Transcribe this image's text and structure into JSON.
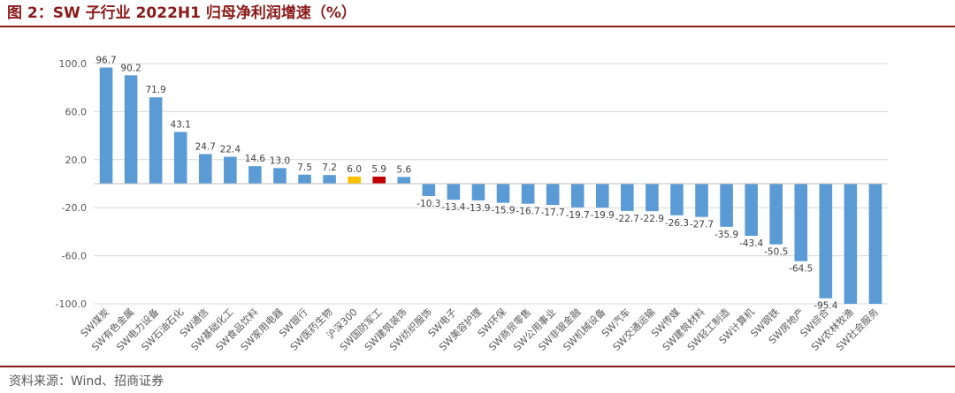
{
  "title": "图 2：SW 子行业 2022H1 归母净利润增速（%）",
  "source": "资料来源：Wind、招商证券",
  "chart_data": {
    "type": "bar",
    "title": "图 2：SW 子行业 2022H1 归母净利润增速（%）",
    "xlabel": "",
    "ylabel": "",
    "ylim": [
      -100,
      100
    ],
    "yticks": [
      100,
      60,
      20,
      -20,
      -60,
      -100
    ],
    "ytick_labels": [
      "100.0",
      "60.0",
      "20.0",
      "-20.0",
      "-60.0",
      "-100.0"
    ],
    "grid": true,
    "categories": [
      "SW煤炭",
      "SW有色金属",
      "SW电力设备",
      "SW石油石化",
      "SW通信",
      "SW基础化工",
      "SW食品饮料",
      "SW家用电器",
      "SW银行",
      "SW医药生物",
      "沪深300",
      "SW国防军工",
      "SW建筑装饰",
      "SW纺织服饰",
      "SW电子",
      "SW美容护理",
      "SW环保",
      "SW商贸零售",
      "SW公用事业",
      "SW非银金融",
      "SW机械设备",
      "SW汽车",
      "SW交通运输",
      "SW传媒",
      "SW建筑材料",
      "SW轻工制造",
      "SW计算机",
      "SW钢铁",
      "SW房地产",
      "SW综合",
      "SW农林牧渔",
      "SW社会服务"
    ],
    "values": [
      96.7,
      90.2,
      71.9,
      43.1,
      24.7,
      22.4,
      14.6,
      13.0,
      7.5,
      7.2,
      6.0,
      5.9,
      5.6,
      -10.3,
      -13.4,
      -13.9,
      -15.9,
      -16.7,
      -17.7,
      -19.7,
      -19.9,
      -22.7,
      -22.9,
      -26.3,
      -27.7,
      -35.9,
      -43.4,
      -50.5,
      -64.5,
      -95.4,
      null,
      null
    ],
    "value_labels": [
      "96.7",
      "90.2",
      "71.9",
      "43.1",
      "24.7",
      "22.4",
      "14.6",
      "13.0",
      "7.5",
      "7.2",
      "6.0",
      "5.9",
      "5.6",
      "-10.3",
      "-13.4",
      "-13.9",
      "-15.9",
      "-16.7",
      "-17.7",
      "-19.7",
      "-19.9",
      "-22.7",
      "-22.9",
      "-26.3",
      "-27.7",
      "-35.9",
      "-43.4",
      "-50.5",
      "-64.5",
      "-95.4",
      "",
      ""
    ],
    "colors": {
      "default": "#5b9bd5",
      "highlight_hs300": "#ffc000",
      "highlight_defense": "#c00000",
      "grid": "#d9d9d9",
      "axis": "#bfbfbf",
      "title": "#8b1a1a"
    },
    "highlight": {
      "沪深300": "#ffc000",
      "SW国防军工": "#c00000"
    }
  }
}
